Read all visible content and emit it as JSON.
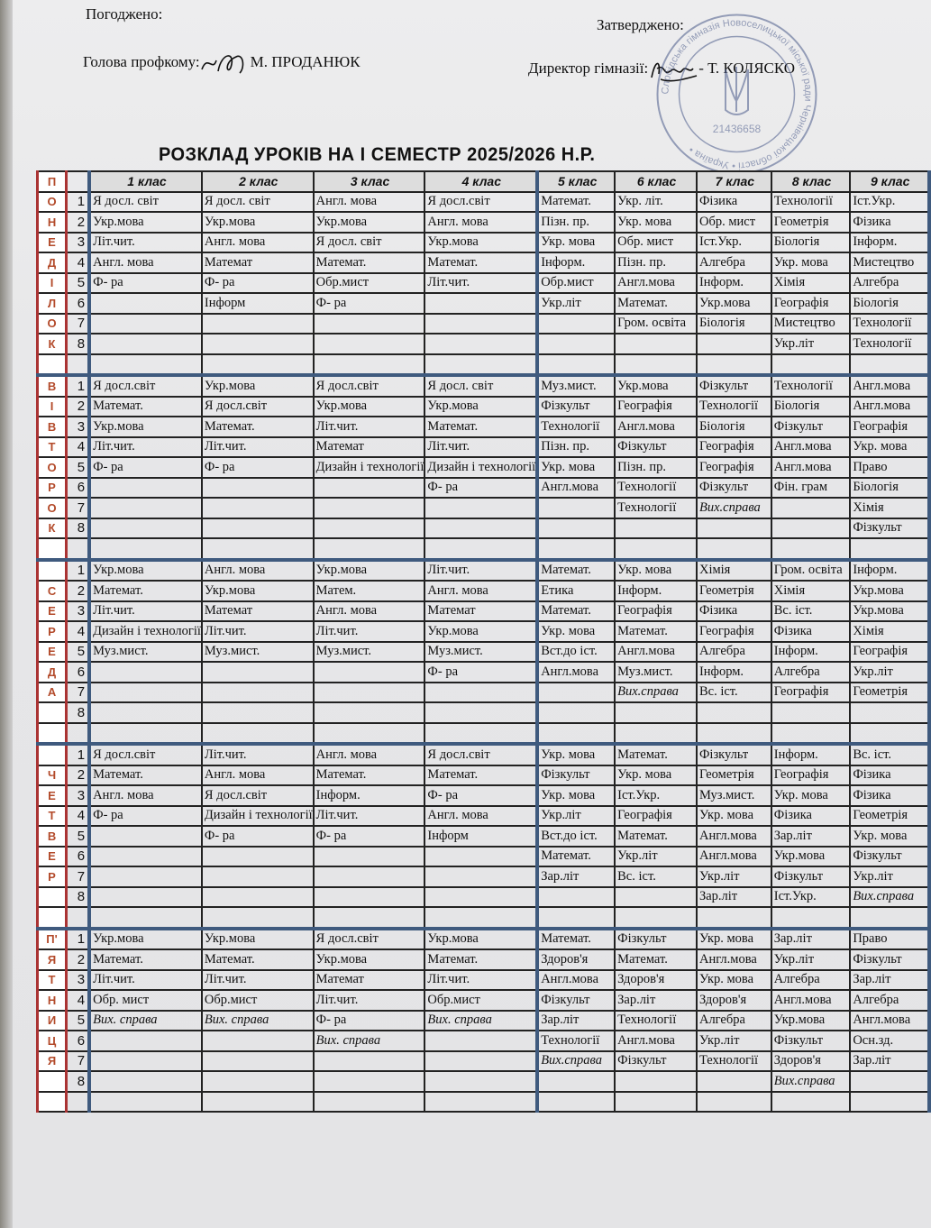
{
  "header": {
    "approved_label": "Погоджено:",
    "head_role": "Голова профкому:",
    "head_name": "М. ПРОДАНЮК",
    "confirmed_label": "Затверджено:",
    "director_role": "Директор гімназії:",
    "director_name": "- Т. КОЛЯСКО",
    "stamp_text": "Слобідська гімназія Новоселицької міської ради Чернівецької області • Україна •",
    "stamp_code": "21436658"
  },
  "title": "РОЗКЛАД УРОКІВ НА І СЕМЕСТР 2025/2026 Н.Р.",
  "header_letter": "П",
  "classes": [
    "1 клас",
    "2 клас",
    "3 клас",
    "4 клас",
    "5 клас",
    "6 клас",
    "7 клас",
    "8  клас",
    "9  клас"
  ],
  "lesson_numbers": [
    "1",
    "2",
    "3",
    "4",
    "5",
    "6",
    "7",
    "8"
  ],
  "days": [
    {
      "letters": [
        "О",
        "Н",
        "Е",
        "Д",
        "І",
        "Л",
        "О",
        "К",
        ""
      ],
      "rows": [
        [
          "Я досл. світ",
          "Я досл. світ",
          "Англ. мова",
          "Я досл.світ",
          "Математ.",
          "Укр. літ.",
          "Фізика",
          "Технології",
          "Іст.Укр."
        ],
        [
          "Укр.мова",
          "Укр.мова",
          "Укр.мова",
          "Англ. мова",
          "Пізн. пр.",
          "Укр. мова",
          "Обр. мист",
          "Геометрія",
          "Фізика"
        ],
        [
          "Літ.чит.",
          "Англ. мова",
          "Я досл. світ",
          "Укр.мова",
          "Укр. мова",
          "Обр. мист",
          "Іст.Укр.",
          "Біологія",
          "Інформ."
        ],
        [
          "Англ. мова",
          "Математ",
          "Математ.",
          "Математ.",
          "Інформ.",
          "Пізн. пр.",
          "Алгебра",
          "Укр. мова",
          "Мистецтво"
        ],
        [
          "Ф- ра",
          "Ф- ра",
          "Обр.мист",
          "Літ.чит.",
          "Обр.мист",
          "Англ.мова",
          "Інформ.",
          "Хімія",
          "Алгебра"
        ],
        [
          "",
          "Інформ",
          "Ф- ра",
          "",
          "Укр.літ",
          "Математ.",
          "Укр.мова",
          "Географія",
          "Біологія"
        ],
        [
          "",
          "",
          "",
          "",
          "",
          "Гром. освіта",
          "Біологія",
          "Мистецтво",
          "Технології"
        ],
        [
          "",
          "",
          "",
          "",
          "",
          "",
          "",
          "Укр.літ",
          "Технології"
        ]
      ]
    },
    {
      "letters": [
        "В",
        "І",
        "В",
        "Т",
        "О",
        "Р",
        "О",
        "К",
        ""
      ],
      "rows": [
        [
          "Я досл.світ",
          "Укр.мова",
          "Я досл.світ",
          "Я досл. світ",
          "Муз.мист.",
          "Укр.мова",
          "Фізкульт",
          "Технології",
          "Англ.мова"
        ],
        [
          "Математ.",
          "Я досл.світ",
          "Укр.мова",
          "Укр.мова",
          "Фізкульт",
          "Географія",
          "Технології",
          "Біологія",
          "Англ.мова"
        ],
        [
          "Укр.мова",
          "Математ.",
          "Літ.чит.",
          "Математ.",
          "Технології",
          "Англ.мова",
          "Біологія",
          "Фізкульт",
          "Географія"
        ],
        [
          "Літ.чит.",
          "Літ.чит.",
          "Математ",
          "Літ.чит.",
          "Пізн. пр.",
          "Фізкульт",
          "Географія",
          "Англ.мова",
          "Укр. мова"
        ],
        [
          "Ф- ра",
          "Ф- ра",
          "Дизайн і технології",
          "Дизайн і технології",
          "Укр. мова",
          "Пізн. пр.",
          "Географія",
          "Англ.мова",
          "Право"
        ],
        [
          "",
          "",
          "",
          "Ф- ра",
          "Англ.мова",
          "Технології",
          "Фізкульт",
          "Фін. грам",
          "Біологія"
        ],
        [
          "",
          "",
          "",
          "",
          "",
          "Технології",
          "Вих.справа",
          "",
          "Хімія"
        ],
        [
          "",
          "",
          "",
          "",
          "",
          "",
          "",
          "",
          "Фізкульт"
        ]
      ]
    },
    {
      "letters": [
        "",
        "С",
        "Е",
        "Р",
        "Е",
        "Д",
        "А",
        "",
        ""
      ],
      "rows": [
        [
          "Укр.мова",
          "Англ. мова",
          "Укр.мова",
          "Літ.чит.",
          "Математ.",
          "Укр. мова",
          "Хімія",
          "Гром. освіта",
          "Інформ."
        ],
        [
          "Математ.",
          "Укр.мова",
          "Матем.",
          "Англ. мова",
          "Етика",
          "Інформ.",
          "Геометрія",
          "Хімія",
          "Укр.мова"
        ],
        [
          "Літ.чит.",
          "Математ",
          "Англ. мова",
          "Математ",
          "Математ.",
          "Географія",
          "Фізика",
          "Вс. іст.",
          "Укр.мова"
        ],
        [
          "Дизайн і технології",
          "Літ.чит.",
          "Літ.чит.",
          "Укр.мова",
          "Укр. мова",
          "Математ.",
          "Географія",
          "Фізика",
          "Хімія"
        ],
        [
          "Муз.мист.",
          "Муз.мист.",
          "Муз.мист.",
          "Муз.мист.",
          "Вст.до іст.",
          "Англ.мова",
          "Алгебра",
          "Інформ.",
          "Географія"
        ],
        [
          "",
          "",
          "",
          "Ф- ра",
          "Англ.мова",
          "Муз.мист.",
          "Інформ.",
          "Алгебра",
          "Укр.літ"
        ],
        [
          "",
          "",
          "",
          "",
          "",
          "Вих.справа",
          "Вс. іст.",
          "Географія",
          "Геометрія"
        ],
        [
          "",
          "",
          "",
          "",
          "",
          "",
          "",
          "",
          ""
        ]
      ]
    },
    {
      "letters": [
        "",
        "Ч",
        "Е",
        "Т",
        "В",
        "Е",
        "Р",
        "",
        ""
      ],
      "rows": [
        [
          "Я досл.світ",
          "Літ.чит.",
          "Англ. мова",
          "Я досл.світ",
          "Укр. мова",
          "Математ.",
          "Фізкульт",
          "Інформ.",
          "Вс. іст."
        ],
        [
          "Математ.",
          "Англ. мова",
          "Математ.",
          "Математ.",
          "Фізкульт",
          "Укр. мова",
          "Геометрія",
          "Географія",
          "Фізика"
        ],
        [
          "Англ. мова",
          "Я досл.світ",
          "Інформ.",
          "Ф- ра",
          "Укр. мова",
          "Іст.Укр.",
          "Муз.мист.",
          "Укр. мова",
          "Фізика"
        ],
        [
          "Ф- ра",
          "Дизайн і технології",
          "Літ.чит.",
          "Англ. мова",
          "Укр.літ",
          "Географія",
          "Укр. мова",
          "Фізика",
          "Геометрія"
        ],
        [
          "",
          "Ф- ра",
          "Ф- ра",
          "Інформ",
          "Вст.до іст.",
          "Математ.",
          "Англ.мова",
          "Зар.літ",
          "Укр. мова"
        ],
        [
          "",
          "",
          "",
          "",
          "Математ.",
          "Укр.літ",
          "Англ.мова",
          "Укр.мова",
          "Фізкульт"
        ],
        [
          "",
          "",
          "",
          "",
          "Зар.літ",
          "Вс. іст.",
          "Укр.літ",
          "Фізкульт",
          "Укр.літ"
        ],
        [
          "",
          "",
          "",
          "",
          "",
          "",
          "Зар.літ",
          "Іст.Укр.",
          "Вих.справа"
        ]
      ]
    },
    {
      "letters": [
        "П'",
        "Я",
        "Т",
        "Н",
        "И",
        "Ц",
        "Я",
        "",
        ""
      ],
      "rows": [
        [
          "Укр.мова",
          "Укр.мова",
          "Я досл.світ",
          "Укр.мова",
          "Математ.",
          "Фізкульт",
          "Укр. мова",
          "Зар.літ",
          "Право"
        ],
        [
          "Математ.",
          "Математ.",
          "Укр.мова",
          "Математ.",
          "Здоров'я",
          "Математ.",
          "Англ.мова",
          "Укр.літ",
          "Фізкульт"
        ],
        [
          "Літ.чит.",
          "Літ.чит.",
          "Математ",
          "Літ.чит.",
          "Англ.мова",
          "Здоров'я",
          "Укр. мова",
          "Алгебра",
          "Зар.літ"
        ],
        [
          "Обр. мист",
          "Обр.мист",
          "Літ.чит.",
          "Обр.мист",
          "Фізкульт",
          "Зар.літ",
          "Здоров'я",
          "Англ.мова",
          "Алгебра"
        ],
        [
          "Вих. справа",
          "Вих. справа",
          "Ф- ра",
          "Вих. справа",
          "Зар.літ",
          "Технології",
          "Алгебра",
          "Укр.мова",
          "Англ.мова"
        ],
        [
          "",
          "",
          "Вих. справа",
          "",
          "Технології",
          "Англ.мова",
          "Укр.літ",
          "Фізкульт",
          "Осн.зд."
        ],
        [
          "",
          "",
          "",
          "",
          "Вих.справа",
          "Фізкульт",
          "Технології",
          "Здоров'я",
          "Зар.літ"
        ],
        [
          "",
          "",
          "",
          "",
          "",
          "",
          "",
          "Вих.справа",
          ""
        ]
      ]
    }
  ],
  "colors": {
    "grid_blue": "#3f5a7e",
    "day_letter": "#b34a2a",
    "day_border": "#a33",
    "stamp": "#4a5a8a"
  }
}
